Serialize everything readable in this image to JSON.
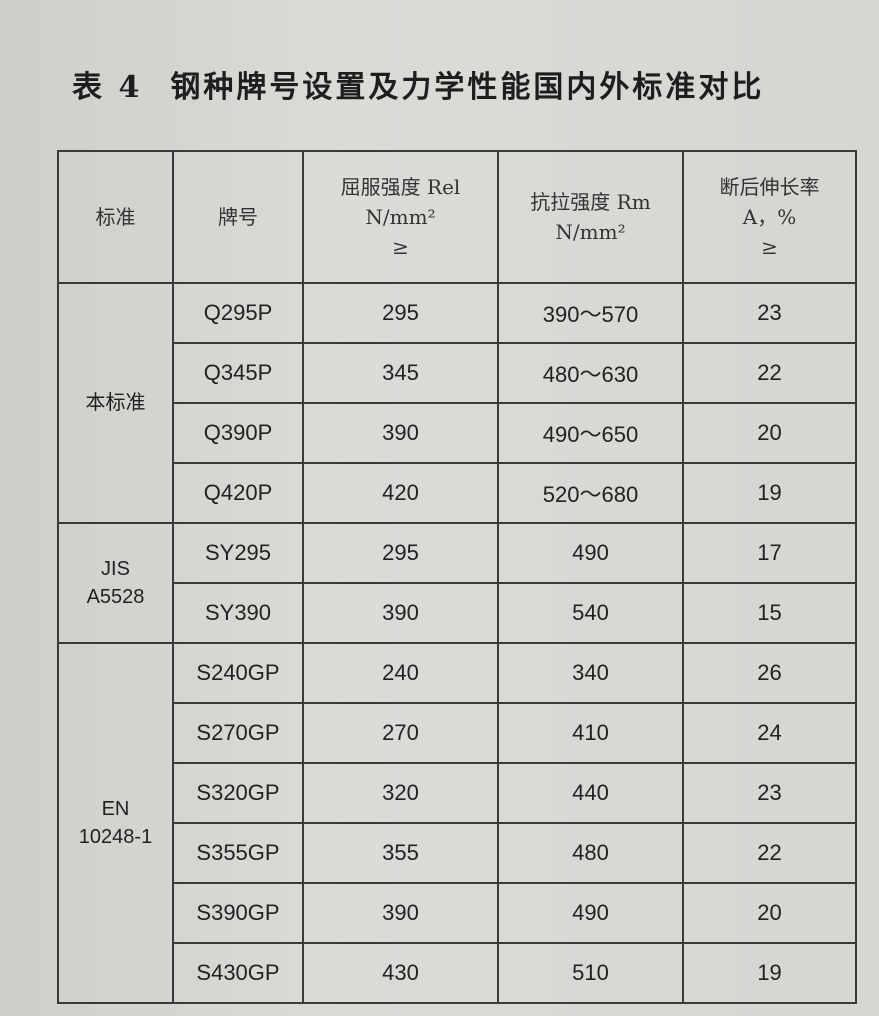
{
  "title": {
    "label": "表 4",
    "text": "钢种牌号设置及力学性能国内外标准对比"
  },
  "table": {
    "headers": [
      {
        "lines": [
          "标准"
        ]
      },
      {
        "lines": [
          "牌号"
        ]
      },
      {
        "lines": [
          "屈服强度 Rel",
          "N/mm²",
          "≥"
        ]
      },
      {
        "lines": [
          "抗拉强度 Rm",
          "N/mm²"
        ]
      },
      {
        "lines": [
          "断后伸长率",
          "A，%",
          "≥"
        ]
      }
    ],
    "groups": [
      {
        "standard": [
          "本标准"
        ],
        "rows": [
          [
            "Q295P",
            "295",
            "390～570",
            "23"
          ],
          [
            "Q345P",
            "345",
            "480～630",
            "22"
          ],
          [
            "Q390P",
            "390",
            "490～650",
            "20"
          ],
          [
            "Q420P",
            "420",
            "520～680",
            "19"
          ]
        ]
      },
      {
        "standard": [
          "JIS",
          "A5528"
        ],
        "rows": [
          [
            "SY295",
            "295",
            "490",
            "17"
          ],
          [
            "SY390",
            "390",
            "540",
            "15"
          ]
        ]
      },
      {
        "standard": [
          "EN",
          "10248-1"
        ],
        "rows": [
          [
            "S240GP",
            "240",
            "340",
            "26"
          ],
          [
            "S270GP",
            "270",
            "410",
            "24"
          ],
          [
            "S320GP",
            "320",
            "440",
            "23"
          ],
          [
            "S355GP",
            "355",
            "480",
            "22"
          ],
          [
            "S390GP",
            "390",
            "490",
            "20"
          ],
          [
            "S430GP",
            "430",
            "510",
            "19"
          ]
        ]
      }
    ]
  }
}
